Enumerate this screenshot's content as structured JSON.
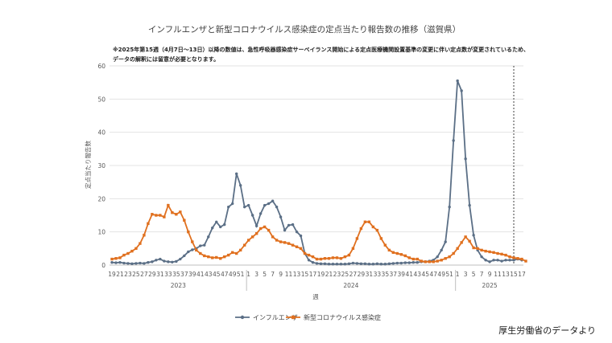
{
  "source": "厚生労働省のデータより",
  "chart_data": {
    "type": "line",
    "title": "インフルエンザと新型コロナウイルス感染症の定点当たり報告数の推移（滋賀県）",
    "note_lines": [
      "※2025年第15週（4月7日～13日）以降の数値は、急性呼吸器感染症サーベイランス開始による定点医療機関設置基準の変更に伴い定点数が変更されているため、",
      "データの解釈には留意が必要となります。"
    ],
    "xlabel": "週",
    "ylabel": "定点当たり報告数",
    "ylim": [
      0,
      60
    ],
    "yticks": [
      0,
      10,
      20,
      30,
      40,
      50,
      60
    ],
    "grid": "horizontal",
    "legend_position": "bottom",
    "x_tick_labels": [
      "19",
      "21",
      "23",
      "25",
      "27",
      "29",
      "31",
      "33",
      "35",
      "37",
      "39",
      "41",
      "43",
      "45",
      "47",
      "49",
      "51",
      "1",
      "3",
      "5",
      "7",
      "9",
      "11",
      "13",
      "15",
      "17",
      "19",
      "21",
      "23",
      "25",
      "27",
      "29",
      "31",
      "33",
      "35",
      "37",
      "39",
      "41",
      "43",
      "45",
      "47",
      "49",
      "51",
      "1",
      "3",
      "5",
      "7",
      "9",
      "11",
      "13",
      "15",
      "17"
    ],
    "year_labels": [
      {
        "label": "2023",
        "start_week_index": 0,
        "end_week_index": 33
      },
      {
        "label": "2024",
        "start_week_index": 34,
        "end_week_index": 85
      },
      {
        "label": "2025",
        "start_week_index": 86,
        "end_week_index": 102
      }
    ],
    "vertical_marker_week_index": 100,
    "series": [
      {
        "name": "インフルエンザ",
        "color": "#5b6f86",
        "marker": "circle",
        "values": [
          0.8,
          0.7,
          0.8,
          0.6,
          0.5,
          0.4,
          0.5,
          0.6,
          0.5,
          0.8,
          1.0,
          1.5,
          1.8,
          1.2,
          1.0,
          0.9,
          1.1,
          1.8,
          2.8,
          4.0,
          4.6,
          5.0,
          5.8,
          6.0,
          8.5,
          11.2,
          13.0,
          11.5,
          12.2,
          17.5,
          18.5,
          27.5,
          24.0,
          17.5,
          18.0,
          15.0,
          11.8,
          15.5,
          18.0,
          18.5,
          19.3,
          17.5,
          14.5,
          10.5,
          12.0,
          12.2,
          10.0,
          8.8,
          3.5,
          1.5,
          0.8,
          0.5,
          0.4,
          0.4,
          0.3,
          0.3,
          0.3,
          0.3,
          0.3,
          0.4,
          0.6,
          0.5,
          0.4,
          0.4,
          0.3,
          0.3,
          0.4,
          0.3,
          0.3,
          0.4,
          0.5,
          0.6,
          0.6,
          0.7,
          0.7,
          0.8,
          0.8,
          1.0,
          1.0,
          1.2,
          1.5,
          2.5,
          4.5,
          7.0,
          17.5,
          37.5,
          55.5,
          52.5,
          32.0,
          18.0,
          9.0,
          4.5,
          2.5,
          1.5,
          1.0,
          1.5,
          1.5,
          1.2,
          1.5,
          1.5,
          1.5,
          1.8,
          1.5
        ]
      },
      {
        "name": "新型コロナウイルス感染症",
        "color": "#e0701f",
        "marker": "square",
        "values": [
          1.8,
          2.0,
          2.2,
          3.0,
          3.5,
          4.2,
          5.0,
          6.5,
          9.0,
          12.5,
          15.3,
          15.0,
          15.0,
          14.5,
          18.0,
          15.8,
          15.3,
          16.0,
          13.5,
          10.0,
          7.0,
          4.5,
          3.5,
          2.8,
          2.5,
          2.2,
          2.3,
          2.0,
          2.5,
          3.0,
          3.8,
          3.5,
          4.5,
          6.0,
          7.5,
          8.5,
          9.5,
          11.0,
          11.5,
          10.5,
          8.5,
          7.5,
          7.0,
          6.8,
          6.5,
          6.0,
          5.5,
          5.0,
          3.5,
          3.0,
          2.5,
          1.8,
          1.8,
          2.0,
          2.0,
          2.2,
          2.2,
          2.0,
          2.5,
          3.0,
          5.0,
          8.0,
          11.0,
          13.0,
          13.0,
          11.5,
          10.5,
          8.0,
          6.0,
          4.5,
          3.8,
          3.5,
          3.2,
          2.8,
          2.2,
          1.8,
          1.8,
          1.2,
          1.0,
          1.0,
          1.0,
          1.2,
          1.5,
          2.0,
          2.5,
          3.5,
          5.0,
          6.8,
          8.5,
          7.2,
          5.2,
          5.0,
          4.5,
          4.2,
          4.0,
          3.8,
          3.5,
          3.3,
          3.0,
          2.5,
          2.2,
          2.0,
          1.8,
          1.2
        ]
      }
    ]
  }
}
